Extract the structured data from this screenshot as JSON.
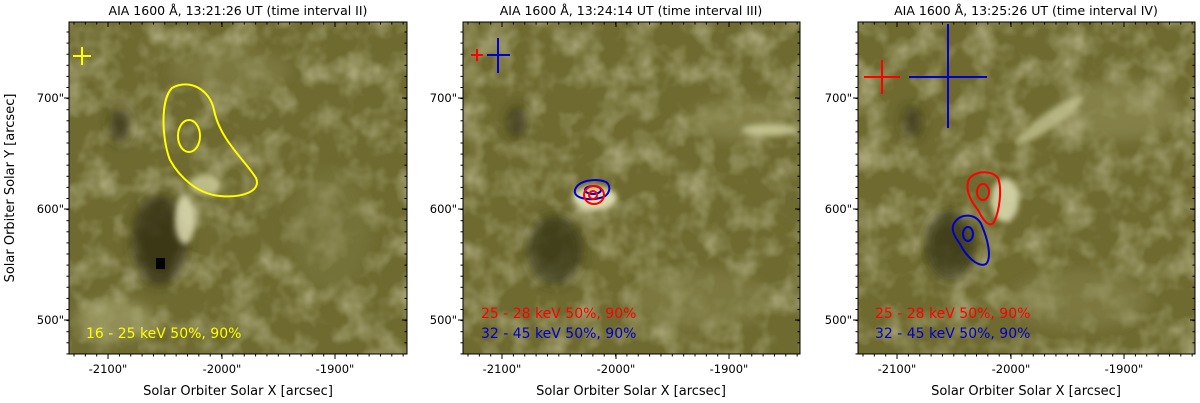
{
  "figure": {
    "y_axis_label": "Solar Orbiter Solar Y [arcsec]",
    "x_axis_label": "Solar Orbiter Solar X [arcsec]",
    "x_ticks": [
      "-2100\"",
      "-2000\"",
      "-1900\""
    ],
    "y_ticks": [
      "700\"",
      "600\"",
      "500\""
    ],
    "colors": {
      "yellow": "#ffff00",
      "red": "#ff0000",
      "blue": "#0000cc",
      "background": "#6e6a30"
    },
    "panels": [
      {
        "title": "AIA 1600 Å, 13:21:26 UT (time interval II)",
        "legend": [
          {
            "text": "16 - 25 keV 50%, 90%",
            "color": "#ffff00"
          }
        ]
      },
      {
        "title": "AIA 1600 Å, 13:24:14 UT (time interval III)",
        "legend": [
          {
            "text": "25 - 28 keV 50%, 90%",
            "color": "#ff0000"
          },
          {
            "text": "32 - 45 keV 50%, 90%",
            "color": "#0000cc"
          }
        ]
      },
      {
        "title": "AIA 1600 Å, 13:25:26 UT (time interval IV)",
        "legend": [
          {
            "text": "25 - 28 keV 50%, 90%",
            "color": "#ff0000"
          },
          {
            "text": "32 - 45 keV 50%, 90%",
            "color": "#0000cc"
          }
        ]
      }
    ]
  }
}
